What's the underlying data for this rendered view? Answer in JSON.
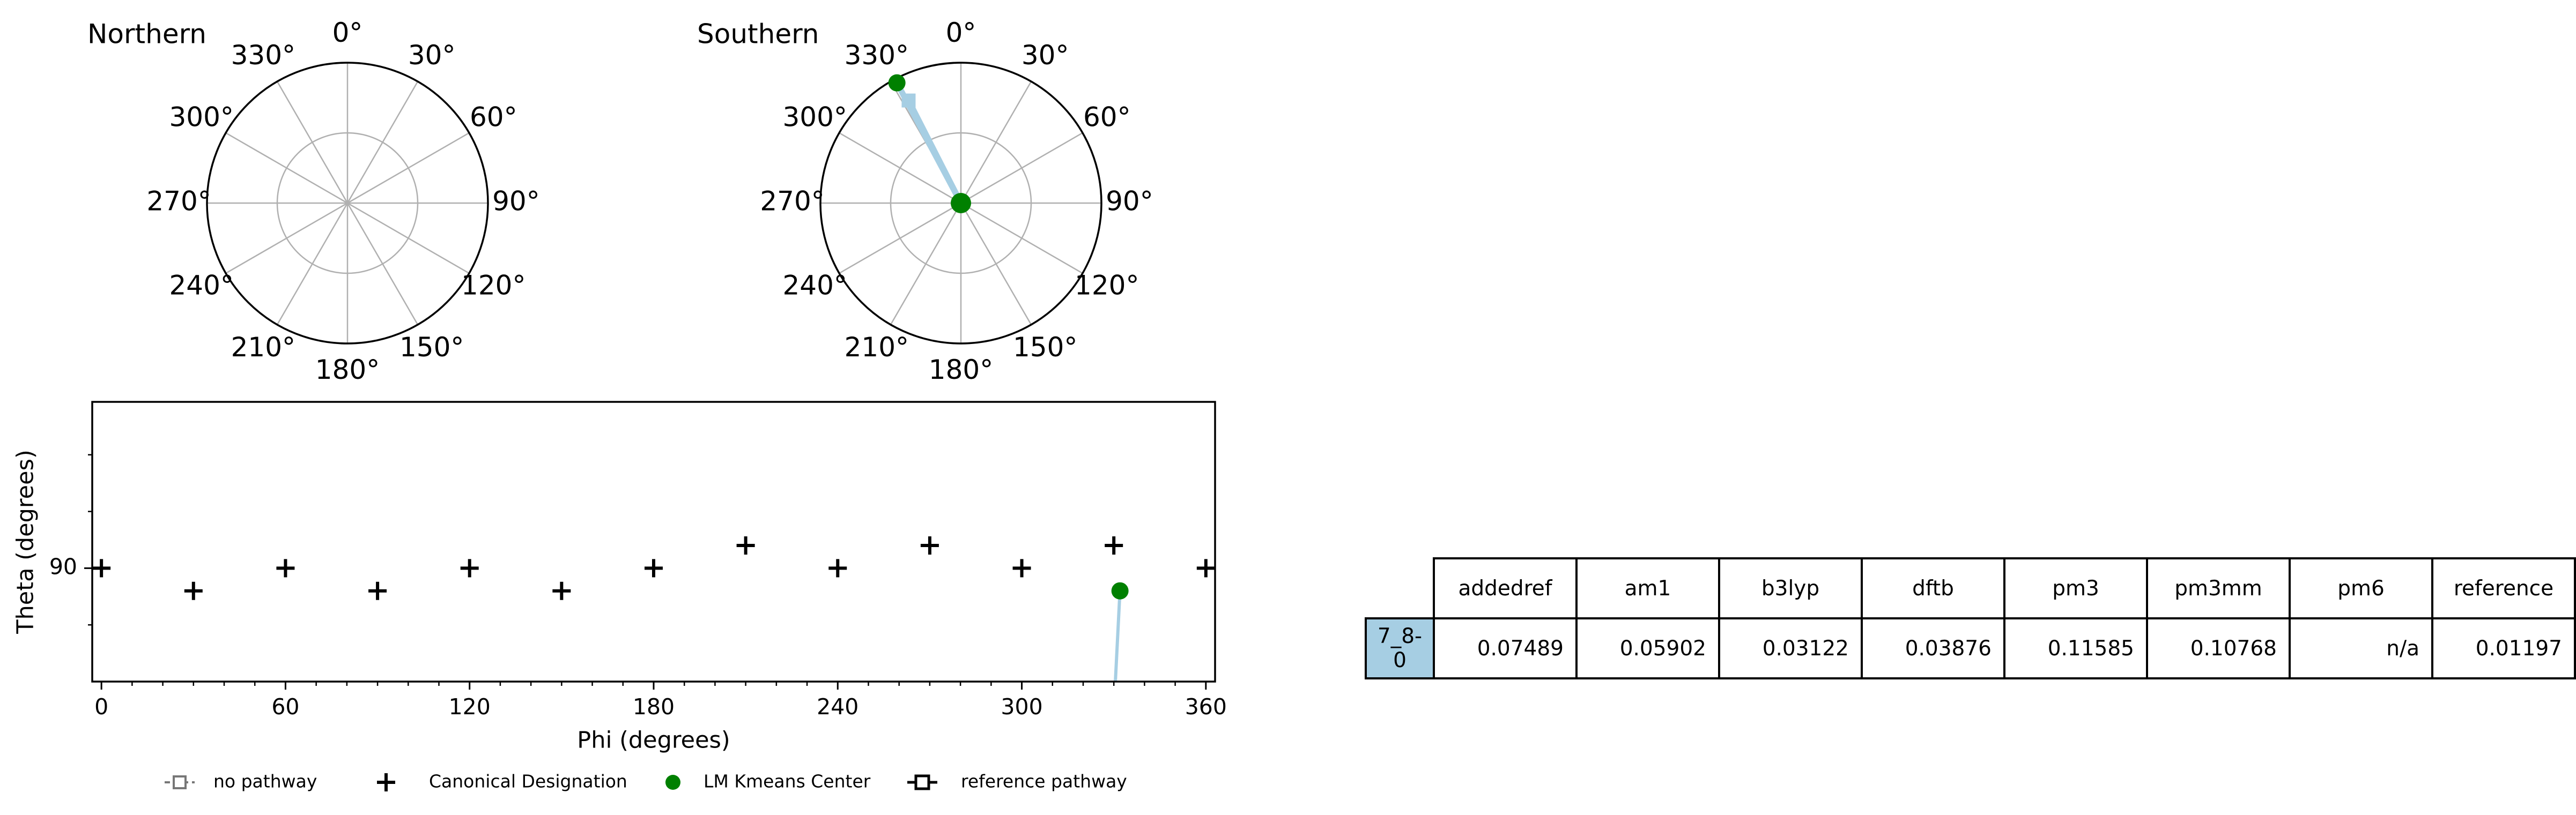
{
  "polar_plots": [
    {
      "title": "Northern",
      "angle_labels": [
        "0°",
        "30°",
        "60°",
        "90°",
        "120°",
        "150°",
        "180°",
        "210°",
        "240°",
        "270°",
        "300°",
        "330°"
      ]
    },
    {
      "title": "Southern",
      "angle_labels": [
        "0°",
        "30°",
        "60°",
        "90°",
        "120°",
        "150°",
        "180°",
        "210°",
        "240°",
        "270°",
        "300°",
        "330°"
      ]
    }
  ],
  "chart_data": [
    {
      "type": "scatter",
      "title": "Northern",
      "projection": "polar",
      "theta_zero": "top",
      "direction": "clockwise",
      "series": []
    },
    {
      "type": "scatter",
      "title": "Southern",
      "projection": "polar",
      "theta_zero": "top",
      "direction": "clockwise",
      "series": [
        {
          "name": "LM Kmeans Center",
          "color": "#008000",
          "points": [
            {
              "phi": 332,
              "r": 0.97
            },
            {
              "phi": 0,
              "r": 0.0
            }
          ]
        },
        {
          "name": "reference pathway",
          "color": "#a6cee3",
          "points": [
            {
              "phi": 333,
              "r": 0.82
            }
          ],
          "lines": [
            [
              {
                "phi": 333,
                "r": 0.82
              },
              {
                "phi": 0,
                "r": 0.0
              }
            ],
            [
              {
                "phi": 332,
                "r": 0.97
              },
              {
                "phi": 0,
                "r": 0.0
              }
            ]
          ]
        }
      ]
    },
    {
      "type": "scatter",
      "xlabel": "Phi (degrees)",
      "ylabel": "Theta (degrees)",
      "xlim": [
        -3,
        363
      ],
      "ylim": [
        75,
        112
      ],
      "x_ticks": [
        0,
        60,
        120,
        180,
        240,
        300,
        360
      ],
      "x_minor_step": 10,
      "y_ticks": [
        90
      ],
      "y_minor_ticks": [
        82.5,
        97.5,
        105
      ],
      "series": [
        {
          "name": "Canonical Designation",
          "marker": "+",
          "color": "#000000",
          "x": [
            0,
            30,
            60,
            90,
            120,
            150,
            180,
            210,
            240,
            270,
            300,
            330,
            360
          ],
          "y": [
            90,
            87,
            90,
            87,
            90,
            87,
            90,
            93,
            90,
            93,
            90,
            93,
            90
          ]
        },
        {
          "name": "LM Kmeans Center",
          "marker": "o",
          "color": "#008000",
          "x": [
            332
          ],
          "y": [
            87
          ]
        },
        {
          "name": "reference pathway",
          "color": "#a6cee3",
          "line": {
            "x": [
              330.5,
              332
            ],
            "y": [
              75,
              87
            ]
          }
        }
      ]
    }
  ],
  "legend": {
    "items": [
      {
        "label": "no pathway",
        "style": "dashed-square",
        "color": "#777777"
      },
      {
        "label": "Canonical Designation",
        "style": "plus",
        "color": "#000000"
      },
      {
        "label": "LM Kmeans Center",
        "style": "dot",
        "color": "#008000"
      },
      {
        "label": "reference pathway",
        "style": "solid-square",
        "color": "#000000"
      }
    ]
  },
  "table": {
    "columns": [
      "addedref",
      "am1",
      "b3lyp",
      "dftb",
      "pm3",
      "pm3mm",
      "pm6",
      "reference"
    ],
    "rows": [
      {
        "label": "7_8-0",
        "label_color": "#a6cee3",
        "values": [
          "0.07489",
          "0.05902",
          "0.03122",
          "0.03876",
          "0.11585",
          "0.10768",
          "n/a",
          "0.01197"
        ]
      }
    ]
  }
}
